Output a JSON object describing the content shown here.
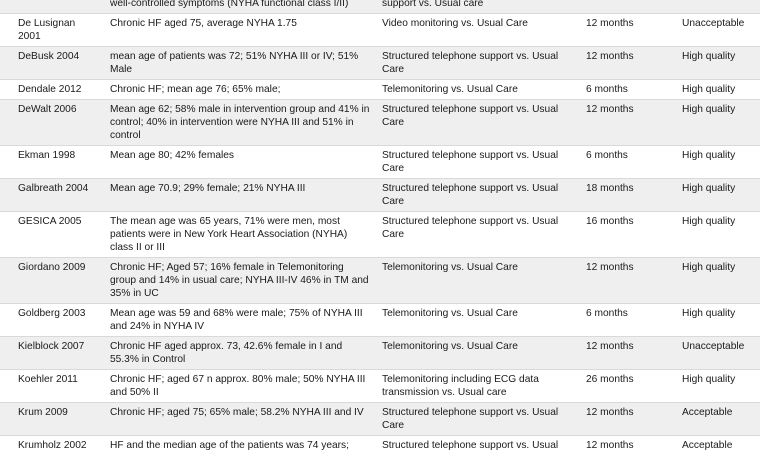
{
  "rows": [
    {
      "study": "",
      "population": "well-controlled symptoms (NYHA functional class I/II)",
      "intervention": "support vs. Usual care",
      "duration": "",
      "quality": ""
    },
    {
      "study": "De Lusignan 2001",
      "population": "Chronic HF aged 75, average NYHA 1.75",
      "intervention": "Video monitoring vs. Usual Care",
      "duration": "12 months",
      "quality": "Unacceptable"
    },
    {
      "study": "DeBusk 2004",
      "population": "mean age of patients was 72; 51% NYHA III or IV; 51% Male",
      "intervention": "Structured telephone support vs. Usual Care",
      "duration": "12 months",
      "quality": "High quality"
    },
    {
      "study": "Dendale 2012",
      "population": "Chronic HF; mean age 76; 65% male;",
      "intervention": "Telemonitoring vs. Usual Care",
      "duration": "6 months",
      "quality": "High quality"
    },
    {
      "study": "DeWalt 2006",
      "population": "Mean age 62; 58% male in intervention group and 41% in control; 40% in intervention were NYHA III and 51% in control",
      "intervention": "Structured telephone support vs. Usual Care",
      "duration": "12 months",
      "quality": "High quality"
    },
    {
      "study": "Ekman 1998",
      "population": "Mean age 80; 42% females",
      "intervention": "Structured telephone support vs. Usual Care",
      "duration": "6 months",
      "quality": "High quality"
    },
    {
      "study": "Galbreath 2004",
      "population": "Mean age 70.9; 29% female; 21% NYHA III",
      "intervention": "Structured telephone support vs. Usual Care",
      "duration": "18 months",
      "quality": "High quality"
    },
    {
      "study": "GESICA 2005",
      "population": "The mean age was 65 years, 71% were men, most patients were in New York Heart Association (NYHA) class II or III",
      "intervention": "Structured telephone support vs. Usual Care",
      "duration": "16 months",
      "quality": "High quality"
    },
    {
      "study": "Giordano 2009",
      "population": "Chronic HF; Aged 57; 16% female in Telemonitoring group and 14% in usual care; NYHA III-IV 46% in TM and 35% in UC",
      "intervention": "Telemonitoring vs. Usual Care",
      "duration": "12 months",
      "quality": "High quality"
    },
    {
      "study": "Goldberg 2003",
      "population": "Mean age was 59 and 68% were male; 75% of NYHA III and 24% in NYHA IV",
      "intervention": "Telemonitoring vs. Usual Care",
      "duration": "6 months",
      "quality": "High quality"
    },
    {
      "study": "Kielblock 2007",
      "population": "Chronic HF aged approx. 73, 42.6% female in I and 55.3% in Control",
      "intervention": "Telemonitoring vs. Usual Care",
      "duration": "12 months",
      "quality": "Unacceptable"
    },
    {
      "study": "Koehler 2011",
      "population": "Chronic HF; aged 67 n approx. 80% male; 50% NYHA III and 50% II",
      "intervention": "Telemonitoring including ECG data transmission vs. Usual care",
      "duration": "26 months",
      "quality": "High quality"
    },
    {
      "study": "Krum 2009",
      "population": "Chronic HF; aged 75; 65% male; 58.2% NYHA III and IV",
      "intervention": "Structured telephone support vs. Usual Care",
      "duration": "12 months",
      "quality": "Acceptable"
    },
    {
      "study": "Krumholz 2002",
      "population": "HF and the median age of the patients was 74 years;",
      "intervention": "Structured telephone support vs. Usual",
      "duration": "12 months",
      "quality": "Acceptable"
    }
  ]
}
